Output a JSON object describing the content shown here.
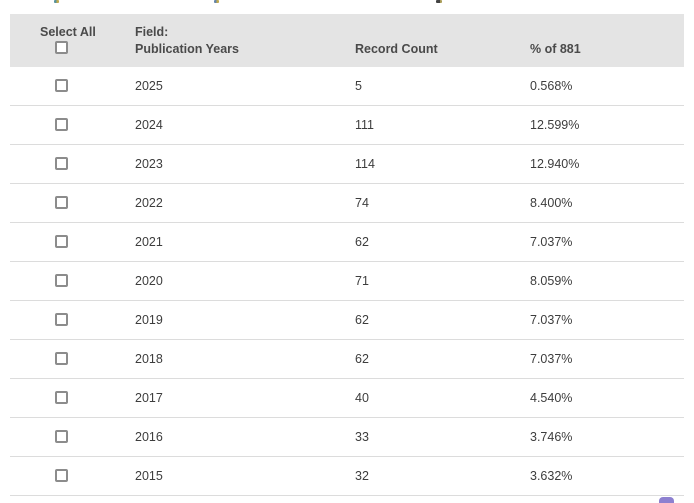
{
  "colors": {
    "header_bg": "#e4e4e4",
    "divider": "#dcdcdc",
    "header_text": "#4a4a4a",
    "row_text": "#3d3d3d",
    "checkbox_border": "#8c8c8c",
    "accent_purple": "#8d80d0"
  },
  "table": {
    "select_all_label": "Select All",
    "field_label": "Field:",
    "field_value": "Publication Years",
    "columns": {
      "record_count": "Record Count",
      "percent": "% of 881"
    },
    "total_records": "881",
    "rows": [
      {
        "year": "2025",
        "count": "5",
        "pct": "0.568%"
      },
      {
        "year": "2024",
        "count": "111",
        "pct": "12.599%"
      },
      {
        "year": "2023",
        "count": "114",
        "pct": "12.940%"
      },
      {
        "year": "2022",
        "count": "74",
        "pct": "8.400%"
      },
      {
        "year": "2021",
        "count": "62",
        "pct": "7.037%"
      },
      {
        "year": "2020",
        "count": "71",
        "pct": "8.059%"
      },
      {
        "year": "2019",
        "count": "62",
        "pct": "7.037%"
      },
      {
        "year": "2018",
        "count": "62",
        "pct": "7.037%"
      },
      {
        "year": "2017",
        "count": "40",
        "pct": "4.540%"
      },
      {
        "year": "2016",
        "count": "33",
        "pct": "3.746%"
      },
      {
        "year": "2015",
        "count": "32",
        "pct": "3.632%"
      }
    ]
  }
}
